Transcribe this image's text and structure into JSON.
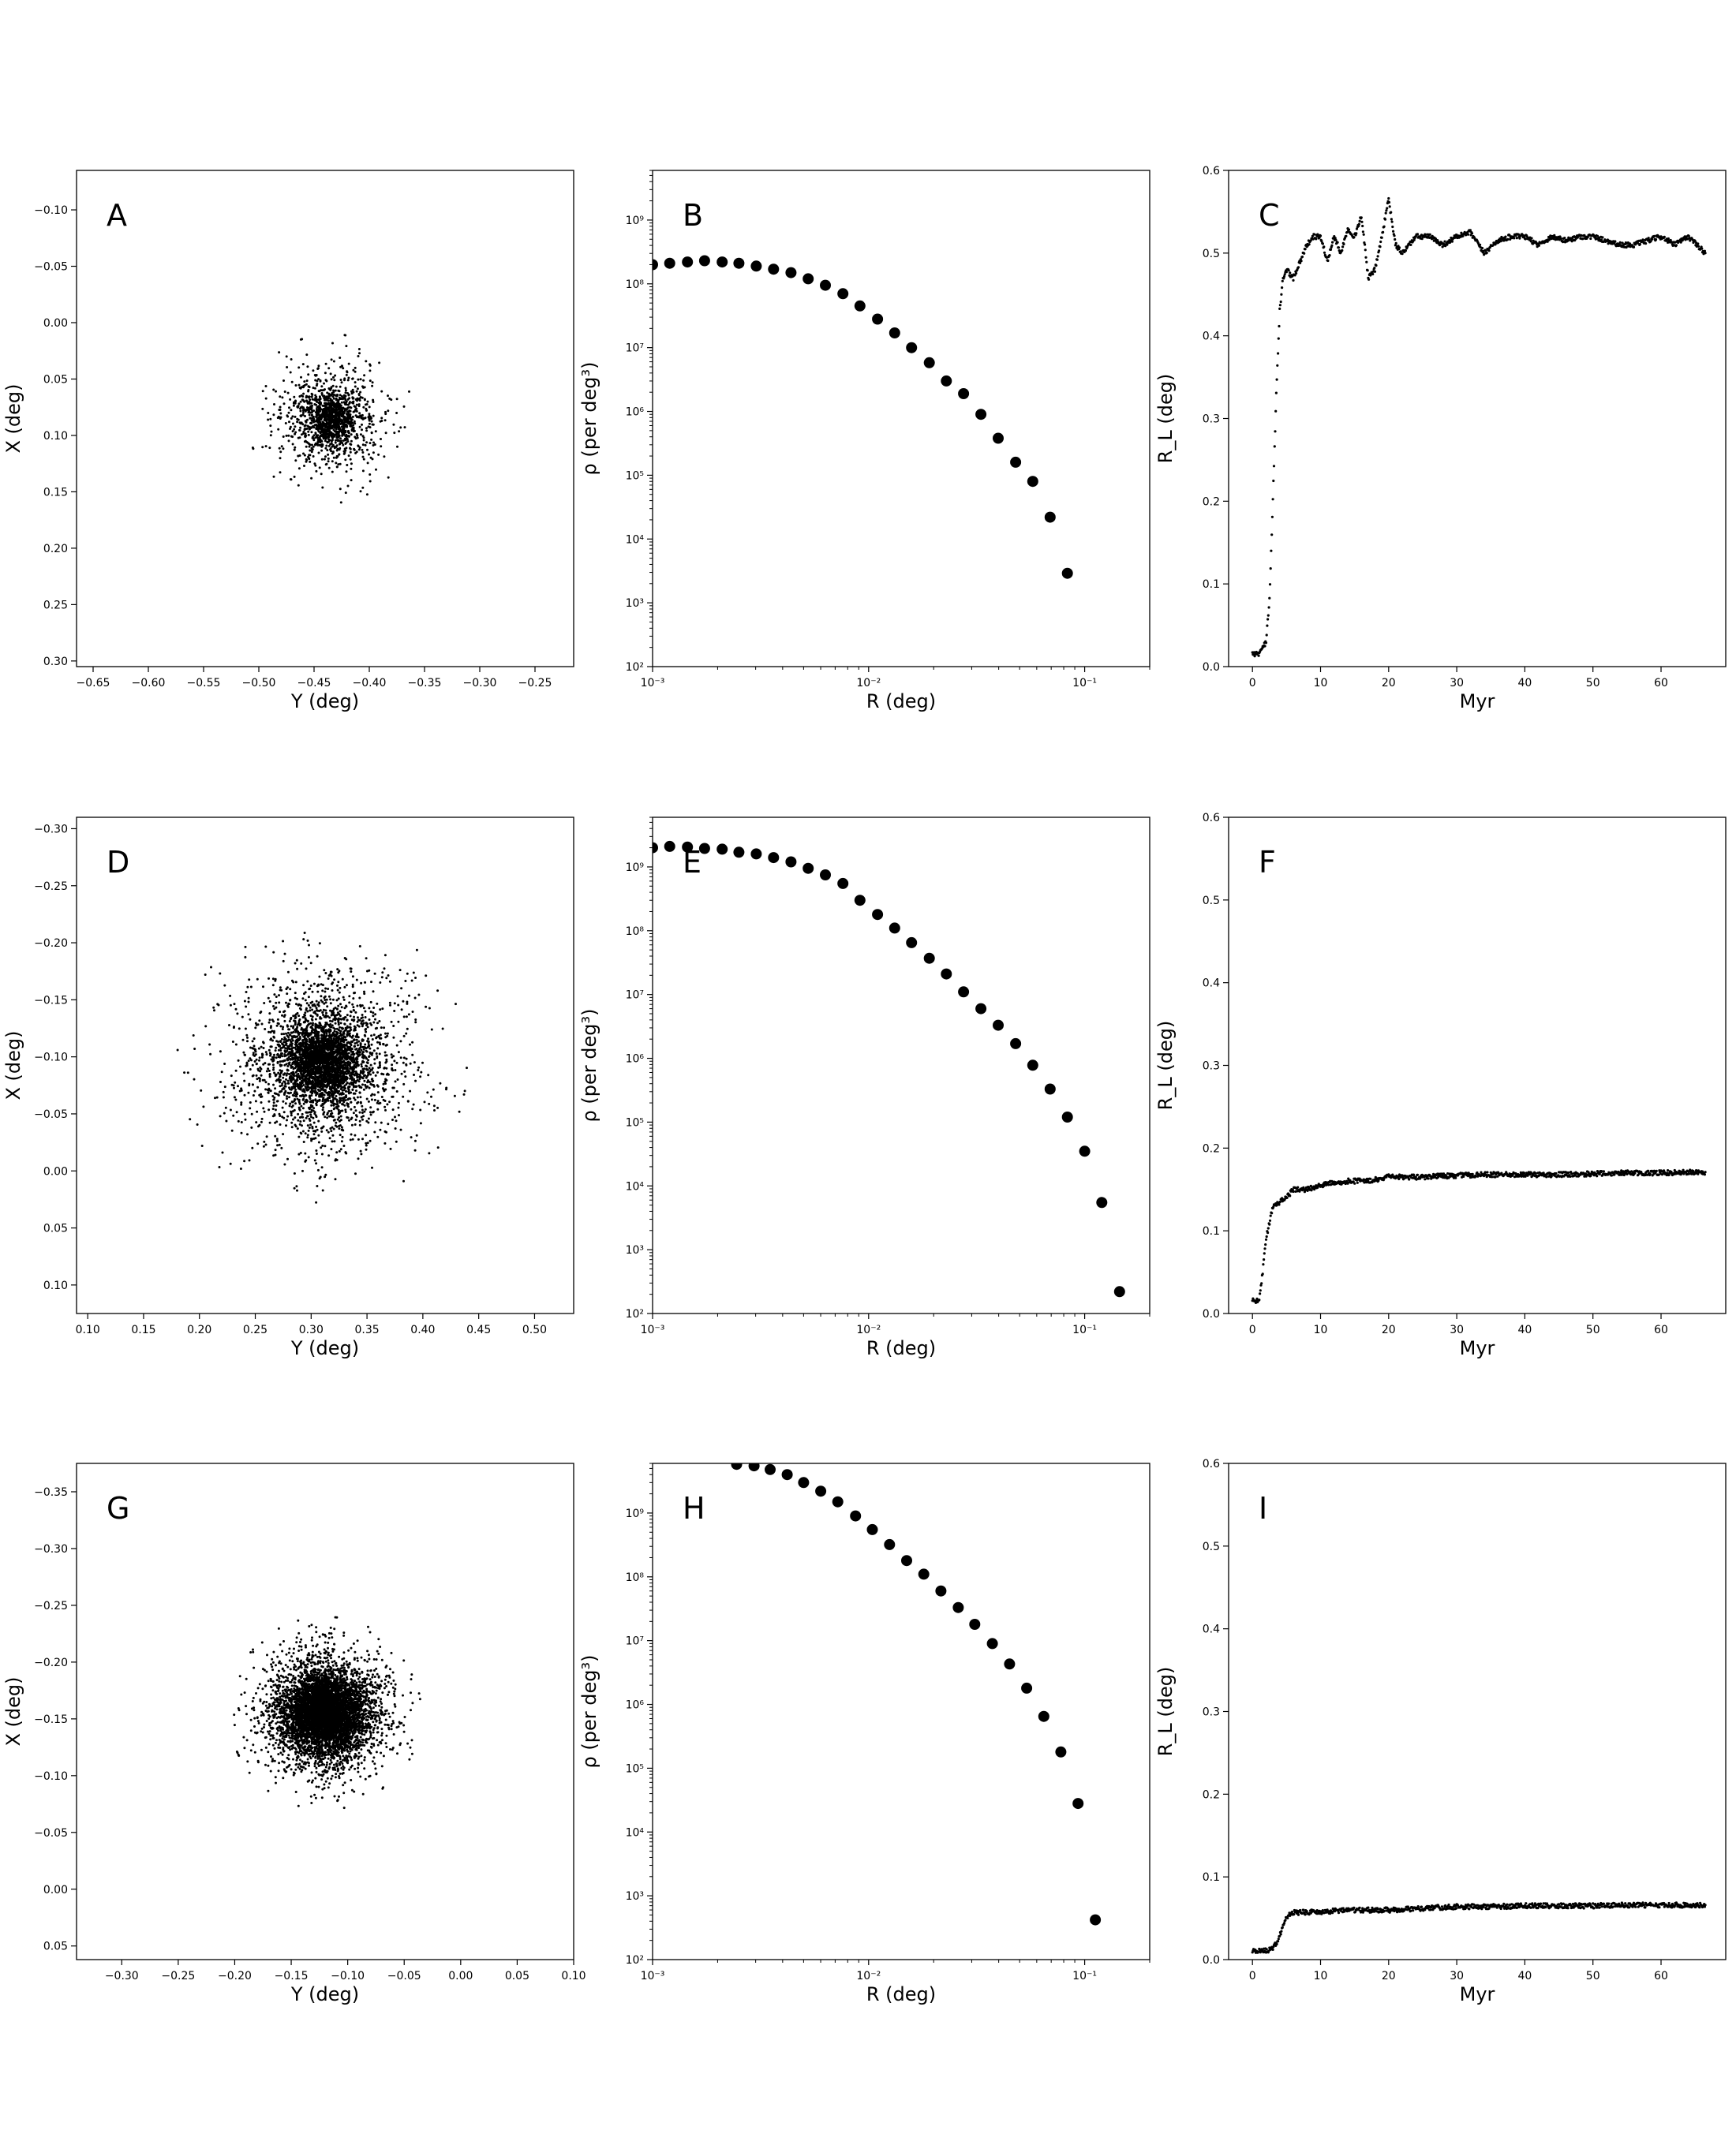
{
  "chart_data": [
    {
      "panel": "A",
      "type": "scatter",
      "xlabel": "Y (deg)",
      "ylabel": "X (deg)",
      "xlim": [
        -0.665,
        -0.215
      ],
      "ylim": [
        -0.135,
        0.305
      ],
      "y_inverted": true,
      "xticks": [
        -0.65,
        -0.6,
        -0.55,
        -0.5,
        -0.45,
        -0.4,
        -0.35,
        -0.3,
        -0.25
      ],
      "xtick_labels": [
        "−0.65",
        "−0.60",
        "−0.55",
        "−0.50",
        "−0.45",
        "−0.40",
        "−0.35",
        "−0.30",
        "−0.25"
      ],
      "yticks": [
        -0.1,
        -0.05,
        0,
        0.05,
        0.1,
        0.15,
        0.2,
        0.25,
        0.3
      ],
      "ytick_labels": [
        "−0.10",
        "−0.05",
        "0.00",
        "0.05",
        "0.10",
        "0.15",
        "0.20",
        "0.25",
        "0.30"
      ],
      "cluster": {
        "center_x": -0.435,
        "center_y": 0.085,
        "core_sigma": 0.012,
        "halo_sigma": 0.025,
        "n_points": 1500,
        "max_radius": 0.075
      }
    },
    {
      "panel": "B",
      "type": "scatter",
      "x_scale": "log",
      "y_scale": "log",
      "xlabel": "R (deg)",
      "ylabel": "ρ (per deg³)",
      "xlim": [
        0.001,
        0.2
      ],
      "ylim": [
        100,
        6000000000
      ],
      "xticks": [
        0.001,
        0.01,
        0.1
      ],
      "xtick_labels": [
        "10⁻³",
        "10⁻²",
        "10⁻¹"
      ],
      "yticks": [
        100,
        1000,
        10000,
        100000,
        1000000,
        10000000,
        100000000,
        1000000000
      ],
      "ytick_labels": [
        "10²",
        "10³",
        "10⁴",
        "10⁵",
        "10⁶",
        "10⁷",
        "10⁸",
        "10⁹"
      ],
      "x": [
        0.001,
        0.0012,
        0.00145,
        0.00174,
        0.0021,
        0.00251,
        0.00302,
        0.00363,
        0.00437,
        0.00525,
        0.00631,
        0.0076,
        0.00912,
        0.011,
        0.0132,
        0.0158,
        0.0191,
        0.0229,
        0.0275,
        0.0331,
        0.0398,
        0.0479,
        0.0575,
        0.0692,
        0.0832
      ],
      "y": [
        200000000,
        210000000,
        220000000,
        230000000,
        220000000,
        210000000,
        190000000,
        170000000,
        150000000,
        120000000,
        95000000,
        70000000,
        45000000,
        28000000,
        17000000,
        10000000,
        5800000,
        3000000,
        1900000,
        900000,
        380000,
        160000,
        80000,
        22000,
        2900
      ]
    },
    {
      "panel": "C",
      "type": "scatter",
      "xlabel": "Myr",
      "ylabel": "R_L (deg)",
      "xlim": [
        -3.5,
        69.5
      ],
      "ylim": [
        0,
        0.6
      ],
      "xticks": [
        0,
        10,
        20,
        30,
        40,
        50,
        60
      ],
      "xtick_labels": [
        "0",
        "10",
        "20",
        "30",
        "40",
        "50",
        "60"
      ],
      "yticks": [
        0,
        0.1,
        0.2,
        0.3,
        0.4,
        0.5,
        0.6
      ],
      "ytick_labels": [
        "0.0",
        "0.1",
        "0.2",
        "0.3",
        "0.4",
        "0.5",
        "0.6"
      ],
      "x": [
        0,
        1,
        2,
        2.5,
        3,
        3.5,
        4,
        4.5,
        5,
        6,
        7,
        8,
        9,
        10,
        11,
        12,
        13,
        14,
        15,
        16,
        17,
        18,
        19,
        20,
        21,
        22,
        24,
        26,
        28,
        30,
        32,
        34,
        36,
        38,
        40,
        42,
        44,
        46,
        48,
        50,
        52,
        54,
        56,
        58,
        60,
        62,
        64,
        66.5
      ],
      "y": [
        0.015,
        0.016,
        0.03,
        0.08,
        0.2,
        0.33,
        0.43,
        0.47,
        0.48,
        0.47,
        0.49,
        0.51,
        0.52,
        0.52,
        0.49,
        0.52,
        0.5,
        0.53,
        0.52,
        0.545,
        0.47,
        0.48,
        0.52,
        0.565,
        0.51,
        0.5,
        0.52,
        0.52,
        0.51,
        0.52,
        0.525,
        0.5,
        0.515,
        0.52,
        0.52,
        0.51,
        0.52,
        0.515,
        0.52,
        0.52,
        0.515,
        0.51,
        0.51,
        0.515,
        0.52,
        0.51,
        0.52,
        0.5
      ]
    },
    {
      "panel": "D",
      "type": "scatter",
      "xlabel": "Y (deg)",
      "ylabel": "X (deg)",
      "xlim": [
        0.09,
        0.535
      ],
      "ylim": [
        -0.31,
        0.125
      ],
      "y_inverted": true,
      "xticks": [
        0.1,
        0.15,
        0.2,
        0.25,
        0.3,
        0.35,
        0.4,
        0.45,
        0.5
      ],
      "xtick_labels": [
        "0.10",
        "0.15",
        "0.20",
        "0.25",
        "0.30",
        "0.35",
        "0.40",
        "0.45",
        "0.50"
      ],
      "yticks": [
        -0.3,
        -0.25,
        -0.2,
        -0.15,
        -0.1,
        -0.05,
        0,
        0.05,
        0.1
      ],
      "ytick_labels": [
        "−0.30",
        "−0.25",
        "−0.20",
        "−0.15",
        "−0.10",
        "−0.05",
        "0.00",
        "0.05",
        "0.10"
      ],
      "cluster": {
        "center_x": 0.31,
        "center_y": -0.095,
        "core_sigma": 0.018,
        "halo_sigma": 0.04,
        "n_points": 4000,
        "max_radius": 0.13
      }
    },
    {
      "panel": "E",
      "type": "scatter",
      "x_scale": "log",
      "y_scale": "log",
      "xlabel": "R (deg)",
      "ylabel": "ρ (per deg³)",
      "xlim": [
        0.001,
        0.2
      ],
      "ylim": [
        100,
        6000000000
      ],
      "xticks": [
        0.001,
        0.01,
        0.1
      ],
      "xtick_labels": [
        "10⁻³",
        "10⁻²",
        "10⁻¹"
      ],
      "yticks": [
        100,
        1000,
        10000,
        100000,
        1000000,
        10000000,
        100000000,
        1000000000
      ],
      "ytick_labels": [
        "10²",
        "10³",
        "10⁴",
        "10⁵",
        "10⁶",
        "10⁷",
        "10⁸",
        "10⁹"
      ],
      "x": [
        0.001,
        0.0012,
        0.00145,
        0.00174,
        0.0021,
        0.00251,
        0.00302,
        0.00363,
        0.00437,
        0.00525,
        0.00631,
        0.0076,
        0.00912,
        0.011,
        0.0132,
        0.0158,
        0.0191,
        0.0229,
        0.0275,
        0.0331,
        0.0398,
        0.0479,
        0.0575,
        0.0692,
        0.0832,
        0.1,
        0.12,
        0.145
      ],
      "y": [
        2000000000,
        2100000000,
        2050000000,
        1950000000,
        1900000000,
        1700000000,
        1600000000,
        1400000000,
        1200000000,
        950000000,
        750000000,
        550000000,
        300000000,
        180000000,
        110000000,
        65000000,
        37000000,
        21000000,
        11000000,
        6000000,
        3300000,
        1700000,
        780000,
        330000,
        120000,
        35000,
        5500,
        220
      ]
    },
    {
      "panel": "F",
      "type": "scatter",
      "xlabel": "Myr",
      "ylabel": "R_L (deg)",
      "xlim": [
        -3.5,
        69.5
      ],
      "ylim": [
        0,
        0.6
      ],
      "xticks": [
        0,
        10,
        20,
        30,
        40,
        50,
        60
      ],
      "xtick_labels": [
        "0",
        "10",
        "20",
        "30",
        "40",
        "50",
        "60"
      ],
      "yticks": [
        0,
        0.1,
        0.2,
        0.3,
        0.4,
        0.5,
        0.6
      ],
      "ytick_labels": [
        "0.0",
        "0.1",
        "0.2",
        "0.3",
        "0.4",
        "0.5",
        "0.6"
      ],
      "x": [
        0,
        1,
        1.5,
        2,
        2.5,
        3,
        4,
        5,
        6,
        8,
        10,
        12,
        14,
        16,
        18,
        20,
        25,
        30,
        35,
        40,
        45,
        50,
        55,
        60,
        66.5
      ],
      "y": [
        0.015,
        0.016,
        0.05,
        0.09,
        0.11,
        0.13,
        0.135,
        0.14,
        0.15,
        0.15,
        0.155,
        0.158,
        0.16,
        0.16,
        0.162,
        0.165,
        0.165,
        0.167,
        0.168,
        0.168,
        0.168,
        0.169,
        0.17,
        0.17,
        0.171
      ]
    },
    {
      "panel": "G",
      "type": "scatter",
      "xlabel": "Y (deg)",
      "ylabel": "X (deg)",
      "xlim": [
        -0.34,
        0.1
      ],
      "ylim": [
        -0.375,
        0.062
      ],
      "y_inverted": true,
      "xticks": [
        -0.3,
        -0.25,
        -0.2,
        -0.15,
        -0.1,
        -0.05,
        0,
        0.05,
        0.1
      ],
      "xtick_labels": [
        "−0.30",
        "−0.25",
        "−0.20",
        "−0.15",
        "−0.10",
        "−0.05",
        "0.00",
        "0.05",
        "0.10"
      ],
      "yticks": [
        -0.35,
        -0.3,
        -0.25,
        -0.2,
        -0.15,
        -0.1,
        -0.05,
        0,
        0.05
      ],
      "ytick_labels": [
        "−0.35",
        "−0.30",
        "−0.25",
        "−0.20",
        "−0.15",
        "−0.10",
        "−0.05",
        "0.00",
        "0.05"
      ],
      "cluster": {
        "center_x": -0.12,
        "center_y": -0.155,
        "core_sigma": 0.016,
        "halo_sigma": 0.027,
        "n_points": 6000,
        "max_radius": 0.085
      }
    },
    {
      "panel": "H",
      "type": "scatter",
      "x_scale": "log",
      "y_scale": "log",
      "xlabel": "R (deg)",
      "ylabel": "ρ (per deg³)",
      "xlim": [
        0.001,
        0.2
      ],
      "ylim": [
        100,
        6000000000
      ],
      "xticks": [
        0.001,
        0.01,
        0.1
      ],
      "xtick_labels": [
        "10⁻³",
        "10⁻²",
        "10⁻¹"
      ],
      "yticks": [
        100,
        1000,
        10000,
        100000,
        1000000,
        10000000,
        100000000,
        1000000000
      ],
      "ytick_labels": [
        "10²",
        "10³",
        "10⁴",
        "10⁵",
        "10⁶",
        "10⁷",
        "10⁸",
        "10⁹"
      ],
      "x": [
        0.00245,
        0.00295,
        0.0035,
        0.0042,
        0.005,
        0.006,
        0.0072,
        0.0087,
        0.0104,
        0.0125,
        0.015,
        0.018,
        0.0216,
        0.026,
        0.031,
        0.0374,
        0.0449,
        0.0539,
        0.0647,
        0.0776,
        0.0932,
        0.112
      ],
      "y": [
        5800000000,
        5500000000,
        4800000000,
        4000000000,
        3000000000,
        2200000000,
        1500000000,
        900000000,
        550000000,
        320000000,
        180000000,
        110000000,
        60000000,
        33000000,
        18000000,
        9000000,
        4300000,
        1800000,
        650000,
        180000,
        28000,
        420
      ]
    },
    {
      "panel": "I",
      "type": "scatter",
      "xlabel": "Myr",
      "ylabel": "R_L (deg)",
      "xlim": [
        -3.5,
        69.5
      ],
      "ylim": [
        0,
        0.6
      ],
      "xticks": [
        0,
        10,
        20,
        30,
        40,
        50,
        60
      ],
      "xtick_labels": [
        "0",
        "10",
        "20",
        "30",
        "40",
        "50",
        "60"
      ],
      "yticks": [
        0,
        0.1,
        0.2,
        0.3,
        0.4,
        0.5,
        0.6
      ],
      "ytick_labels": [
        "0.0",
        "0.1",
        "0.2",
        "0.3",
        "0.4",
        "0.5",
        "0.6"
      ],
      "x": [
        0,
        1,
        2,
        3,
        3.5,
        4,
        4.5,
        5,
        5.5,
        6,
        8,
        10,
        15,
        20,
        25,
        30,
        35,
        40,
        45,
        50,
        55,
        60,
        66.5
      ],
      "y": [
        0.01,
        0.01,
        0.011,
        0.013,
        0.02,
        0.03,
        0.04,
        0.05,
        0.055,
        0.057,
        0.057,
        0.058,
        0.06,
        0.06,
        0.062,
        0.064,
        0.064,
        0.065,
        0.065,
        0.065,
        0.066,
        0.066,
        0.066
      ]
    }
  ]
}
